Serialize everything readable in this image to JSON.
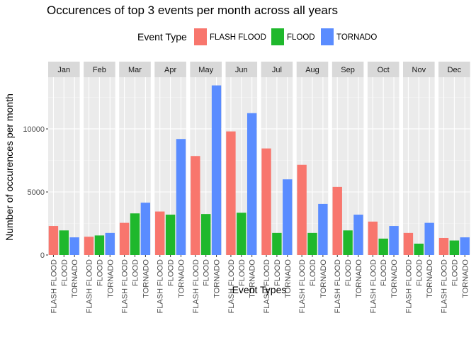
{
  "chart_data": {
    "type": "bar",
    "title": "Occurences of top 3 events per month across all years",
    "xlabel": "Event Types",
    "ylabel": "Number of occurences per month",
    "legend": {
      "title": "Event Type",
      "placement": "top"
    },
    "categories": [
      "FLASH FLOOD",
      "FLOOD",
      "TORNADO"
    ],
    "colors": [
      "#F8766D",
      "#1FB82C",
      "#5A8CFF"
    ],
    "panels": [
      "Jan",
      "Feb",
      "Mar",
      "Apr",
      "May",
      "Jun",
      "Jul",
      "Aug",
      "Sep",
      "Oct",
      "Nov",
      "Dec"
    ],
    "values": [
      [
        2300,
        1950,
        1400
      ],
      [
        1450,
        1550,
        1750
      ],
      [
        2550,
        3300,
        4150
      ],
      [
        3450,
        3200,
        9200
      ],
      [
        7850,
        3250,
        13450
      ],
      [
        9800,
        3350,
        11250
      ],
      [
        8450,
        1750,
        6000
      ],
      [
        7150,
        1750,
        4050
      ],
      [
        5400,
        1950,
        3200
      ],
      [
        2650,
        1300,
        2300
      ],
      [
        1750,
        900,
        2550
      ],
      [
        1350,
        1150,
        1400
      ]
    ],
    "yticks": [
      0,
      5000,
      10000
    ],
    "ylim": [
      0,
      14100
    ],
    "grid": true
  }
}
